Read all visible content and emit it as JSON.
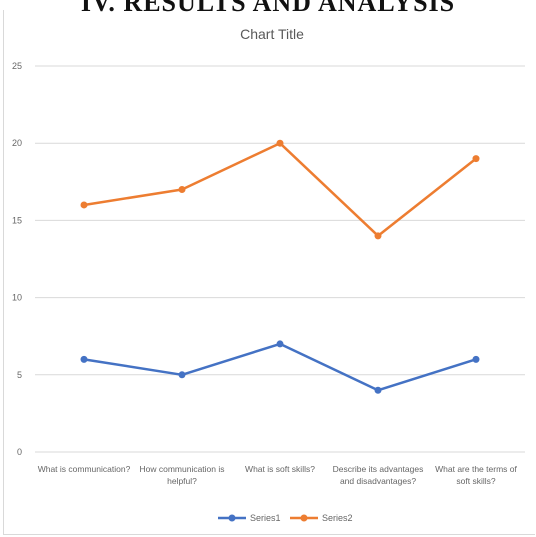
{
  "page": {
    "heading": "IV.    RESULTS AND ANALYSIS"
  },
  "chart_data": {
    "type": "line",
    "title": "Chart Title",
    "xlabel": "",
    "ylabel": "",
    "ylim": [
      0,
      25
    ],
    "yticks": [
      0,
      5,
      10,
      15,
      20,
      25
    ],
    "grid": true,
    "legend_position": "bottom",
    "categories": [
      [
        "What is communication?"
      ],
      [
        "How communication is",
        "helpful?"
      ],
      [
        "What is soft skills?"
      ],
      [
        "Describe its advantages",
        "and disadvantages?"
      ],
      [
        "What are the terms of",
        "soft skills?"
      ]
    ],
    "series": [
      {
        "name": "Series1",
        "color": "#4472c4",
        "values": [
          6,
          5,
          7,
          4,
          6
        ]
      },
      {
        "name": "Series2",
        "color": "#ed7d31",
        "values": [
          16,
          17,
          20,
          14,
          19
        ]
      }
    ]
  }
}
